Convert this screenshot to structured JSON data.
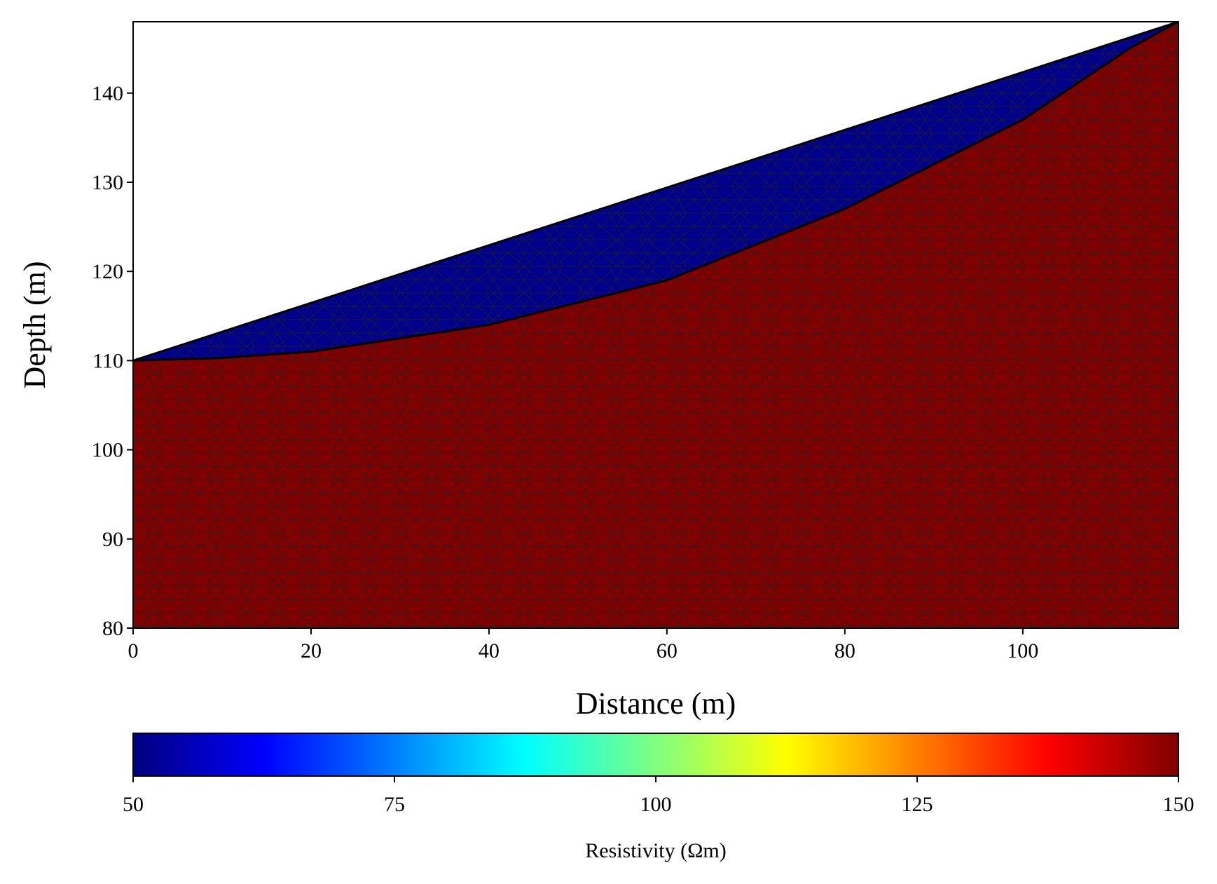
{
  "chart_data": {
    "type": "heatmap",
    "xlabel": "Distance (m)",
    "ylabel": "Depth (m)",
    "xlim": [
      0,
      117.5
    ],
    "ylim": [
      80,
      148
    ],
    "xticks": [
      "0",
      "20",
      "40",
      "60",
      "80",
      "100"
    ],
    "yticks": [
      "80",
      "90",
      "100",
      "110",
      "120",
      "130",
      "140"
    ],
    "regions": [
      {
        "resistivity": 50,
        "color": "#00008c",
        "boundary": [
          [
            0,
            110
          ],
          [
            117.5,
            148
          ],
          [
            112,
            145
          ],
          [
            100,
            137
          ],
          [
            90,
            132
          ],
          [
            80,
            127
          ],
          [
            70,
            123
          ],
          [
            60,
            119
          ],
          [
            50,
            116.5
          ],
          [
            40,
            114
          ],
          [
            30,
            112.5
          ],
          [
            20,
            111
          ],
          [
            10,
            110.3
          ],
          [
            0,
            110
          ]
        ]
      },
      {
        "resistivity": 150,
        "color": "#800000",
        "boundary": [
          [
            0,
            110
          ],
          [
            10,
            110.3
          ],
          [
            20,
            111
          ],
          [
            30,
            112.5
          ],
          [
            40,
            114
          ],
          [
            50,
            116.5
          ],
          [
            60,
            119
          ],
          [
            70,
            123
          ],
          [
            80,
            127
          ],
          [
            90,
            132
          ],
          [
            100,
            137
          ],
          [
            112,
            145
          ],
          [
            117.5,
            148
          ],
          [
            117.5,
            80
          ],
          [
            0,
            80
          ]
        ]
      }
    ],
    "colorbar": {
      "label": "Resistivity (Ωm)",
      "range": [
        50,
        150
      ],
      "ticks": [
        "50",
        "75",
        "100",
        "125",
        "150"
      ],
      "colormap": "jet",
      "stops": [
        "#00007f",
        "#0000ff",
        "#007fff",
        "#00ffff",
        "#7fff7f",
        "#ffff00",
        "#ff7f00",
        "#ff0000",
        "#7f0000"
      ]
    },
    "mesh": "triangular",
    "mesh_line_color": "#222222"
  }
}
